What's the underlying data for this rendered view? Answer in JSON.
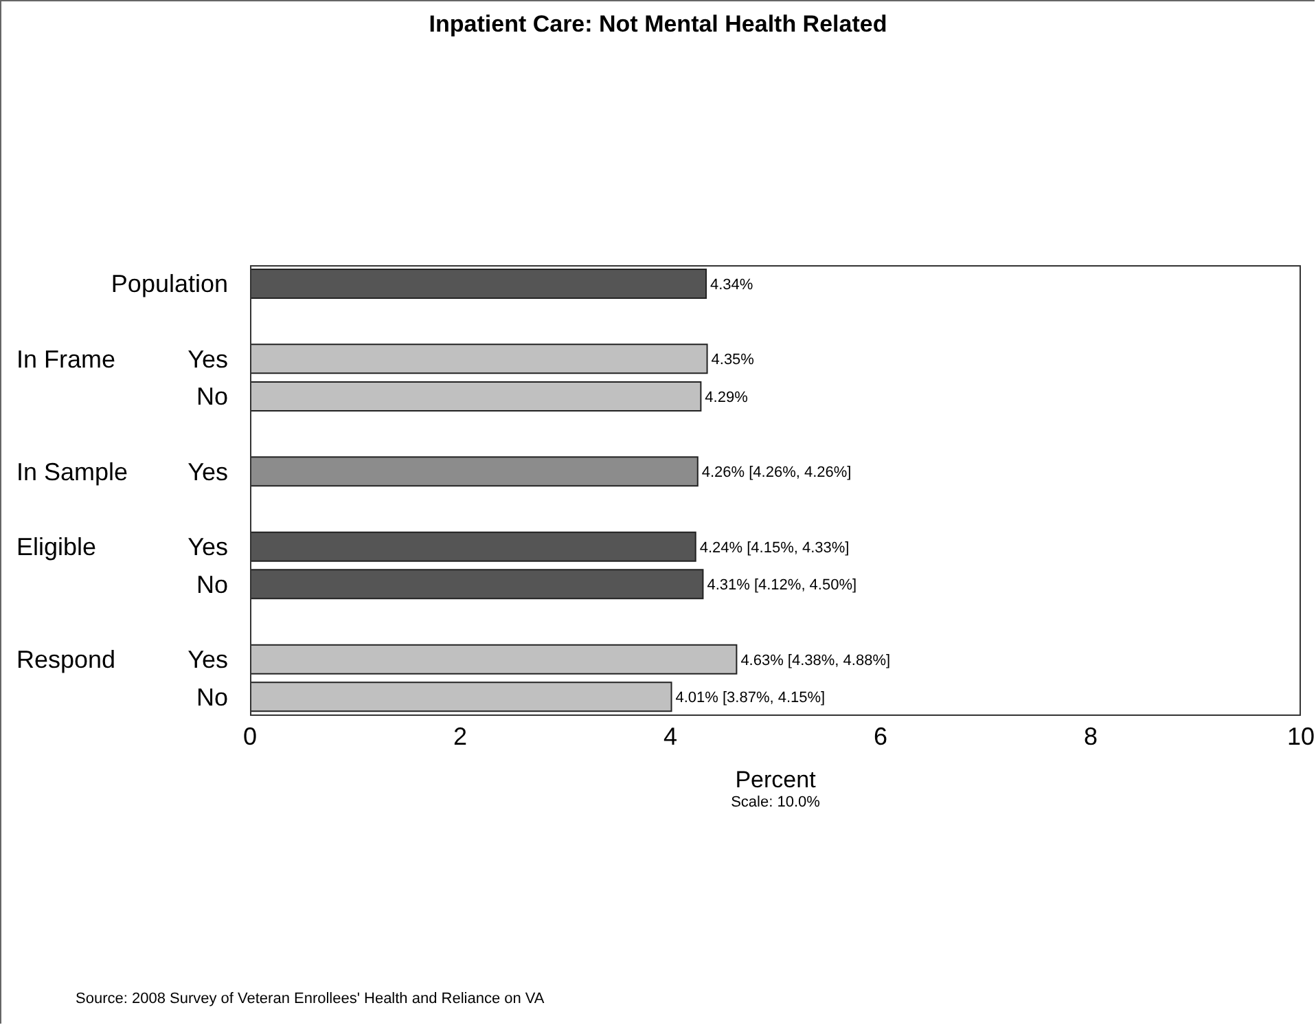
{
  "chart_data": {
    "type": "bar",
    "orientation": "horizontal",
    "title": "Inpatient Care: Not Mental Health Related",
    "xlabel": "Percent",
    "categories": [
      "Population",
      null,
      "In Frame Yes",
      "No",
      null,
      "In Sample Yes",
      null,
      "Eligible Yes",
      "No",
      null,
      "Respond Yes",
      "No"
    ],
    "values": [
      4.34,
      null,
      4.35,
      4.29,
      null,
      4.26,
      null,
      4.24,
      4.31,
      null,
      4.63,
      4.01
    ],
    "colors": [
      "#555555",
      null,
      "#c0c0c0",
      "#c0c0c0",
      null,
      "#8c8c8c",
      null,
      "#555555",
      "#555555",
      null,
      "#c0c0c0",
      "#c0c0c0"
    ],
    "value_labels": [
      "4.34%",
      null,
      "4.35%",
      "4.29%",
      null,
      "4.26% [4.26%, 4.26%]",
      null,
      "4.24% [4.15%, 4.33%]",
      "4.31% [4.12%, 4.50%]",
      null,
      "4.63% [4.38%, 4.88%]",
      "4.01% [3.87%, 4.15%]"
    ],
    "xlim": [
      0,
      10
    ],
    "xticks": [
      0,
      2,
      4,
      6,
      8,
      10
    ],
    "annotations": [
      "Scale: 10.0%",
      "Source: 2008 Survey of Veteran Enrollees' Health and Reliance on VA"
    ]
  }
}
